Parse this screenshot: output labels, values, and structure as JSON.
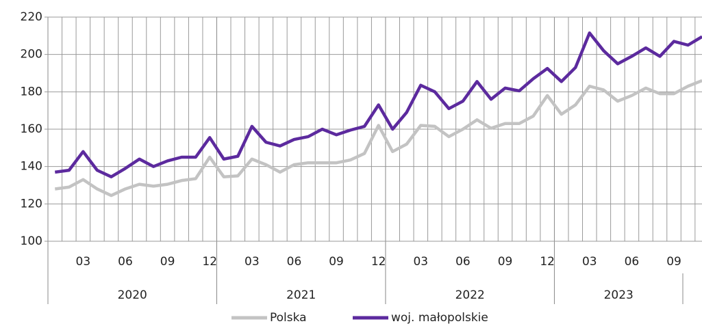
{
  "chart_data": {
    "type": "line",
    "categories": [
      null,
      null,
      "03",
      null,
      null,
      "06",
      null,
      null,
      "09",
      null,
      null,
      "12",
      null,
      null,
      "03",
      null,
      null,
      "06",
      null,
      null,
      "09",
      null,
      null,
      "12",
      null,
      null,
      "03",
      null,
      null,
      "06",
      null,
      null,
      "09",
      null,
      null,
      "12",
      null,
      null,
      "03",
      null,
      null,
      "06",
      null,
      null,
      "09",
      null,
      null
    ],
    "year_groups": [
      "2020",
      "2021",
      "2022",
      "2023"
    ],
    "series": [
      {
        "name": "Polska",
        "color": "#c3c3c3",
        "values": [
          128,
          129,
          133,
          128,
          124.5,
          128,
          130.5,
          129.5,
          130.5,
          132.5,
          133.5,
          145,
          134.5,
          135,
          144,
          141,
          137,
          141,
          142,
          142,
          142,
          143.5,
          147,
          162,
          148,
          152,
          162,
          161.5,
          156,
          160,
          165,
          160.5,
          163,
          163,
          167,
          178,
          168,
          173,
          183,
          181,
          175,
          178,
          182,
          179,
          179,
          183,
          186
        ]
      },
      {
        "name": "woj. małopolskie",
        "color": "#5c2a9e",
        "values": [
          137,
          138,
          148,
          138,
          134.5,
          139,
          144,
          140,
          143,
          145,
          145,
          155.5,
          144,
          145.5,
          161.5,
          153,
          151,
          154.5,
          156,
          160,
          157,
          159.5,
          161.5,
          173,
          160,
          169,
          183.5,
          180,
          171,
          175,
          185.5,
          176,
          182,
          180.5,
          187,
          192.5,
          185.5,
          193,
          211.5,
          202,
          195,
          199,
          203.5,
          199,
          207,
          205,
          209.5
        ]
      }
    ],
    "ylim": [
      100,
      220
    ],
    "yticks": [
      100,
      120,
      140,
      160,
      180,
      200,
      220
    ],
    "grid": true,
    "legend": "bottom"
  }
}
